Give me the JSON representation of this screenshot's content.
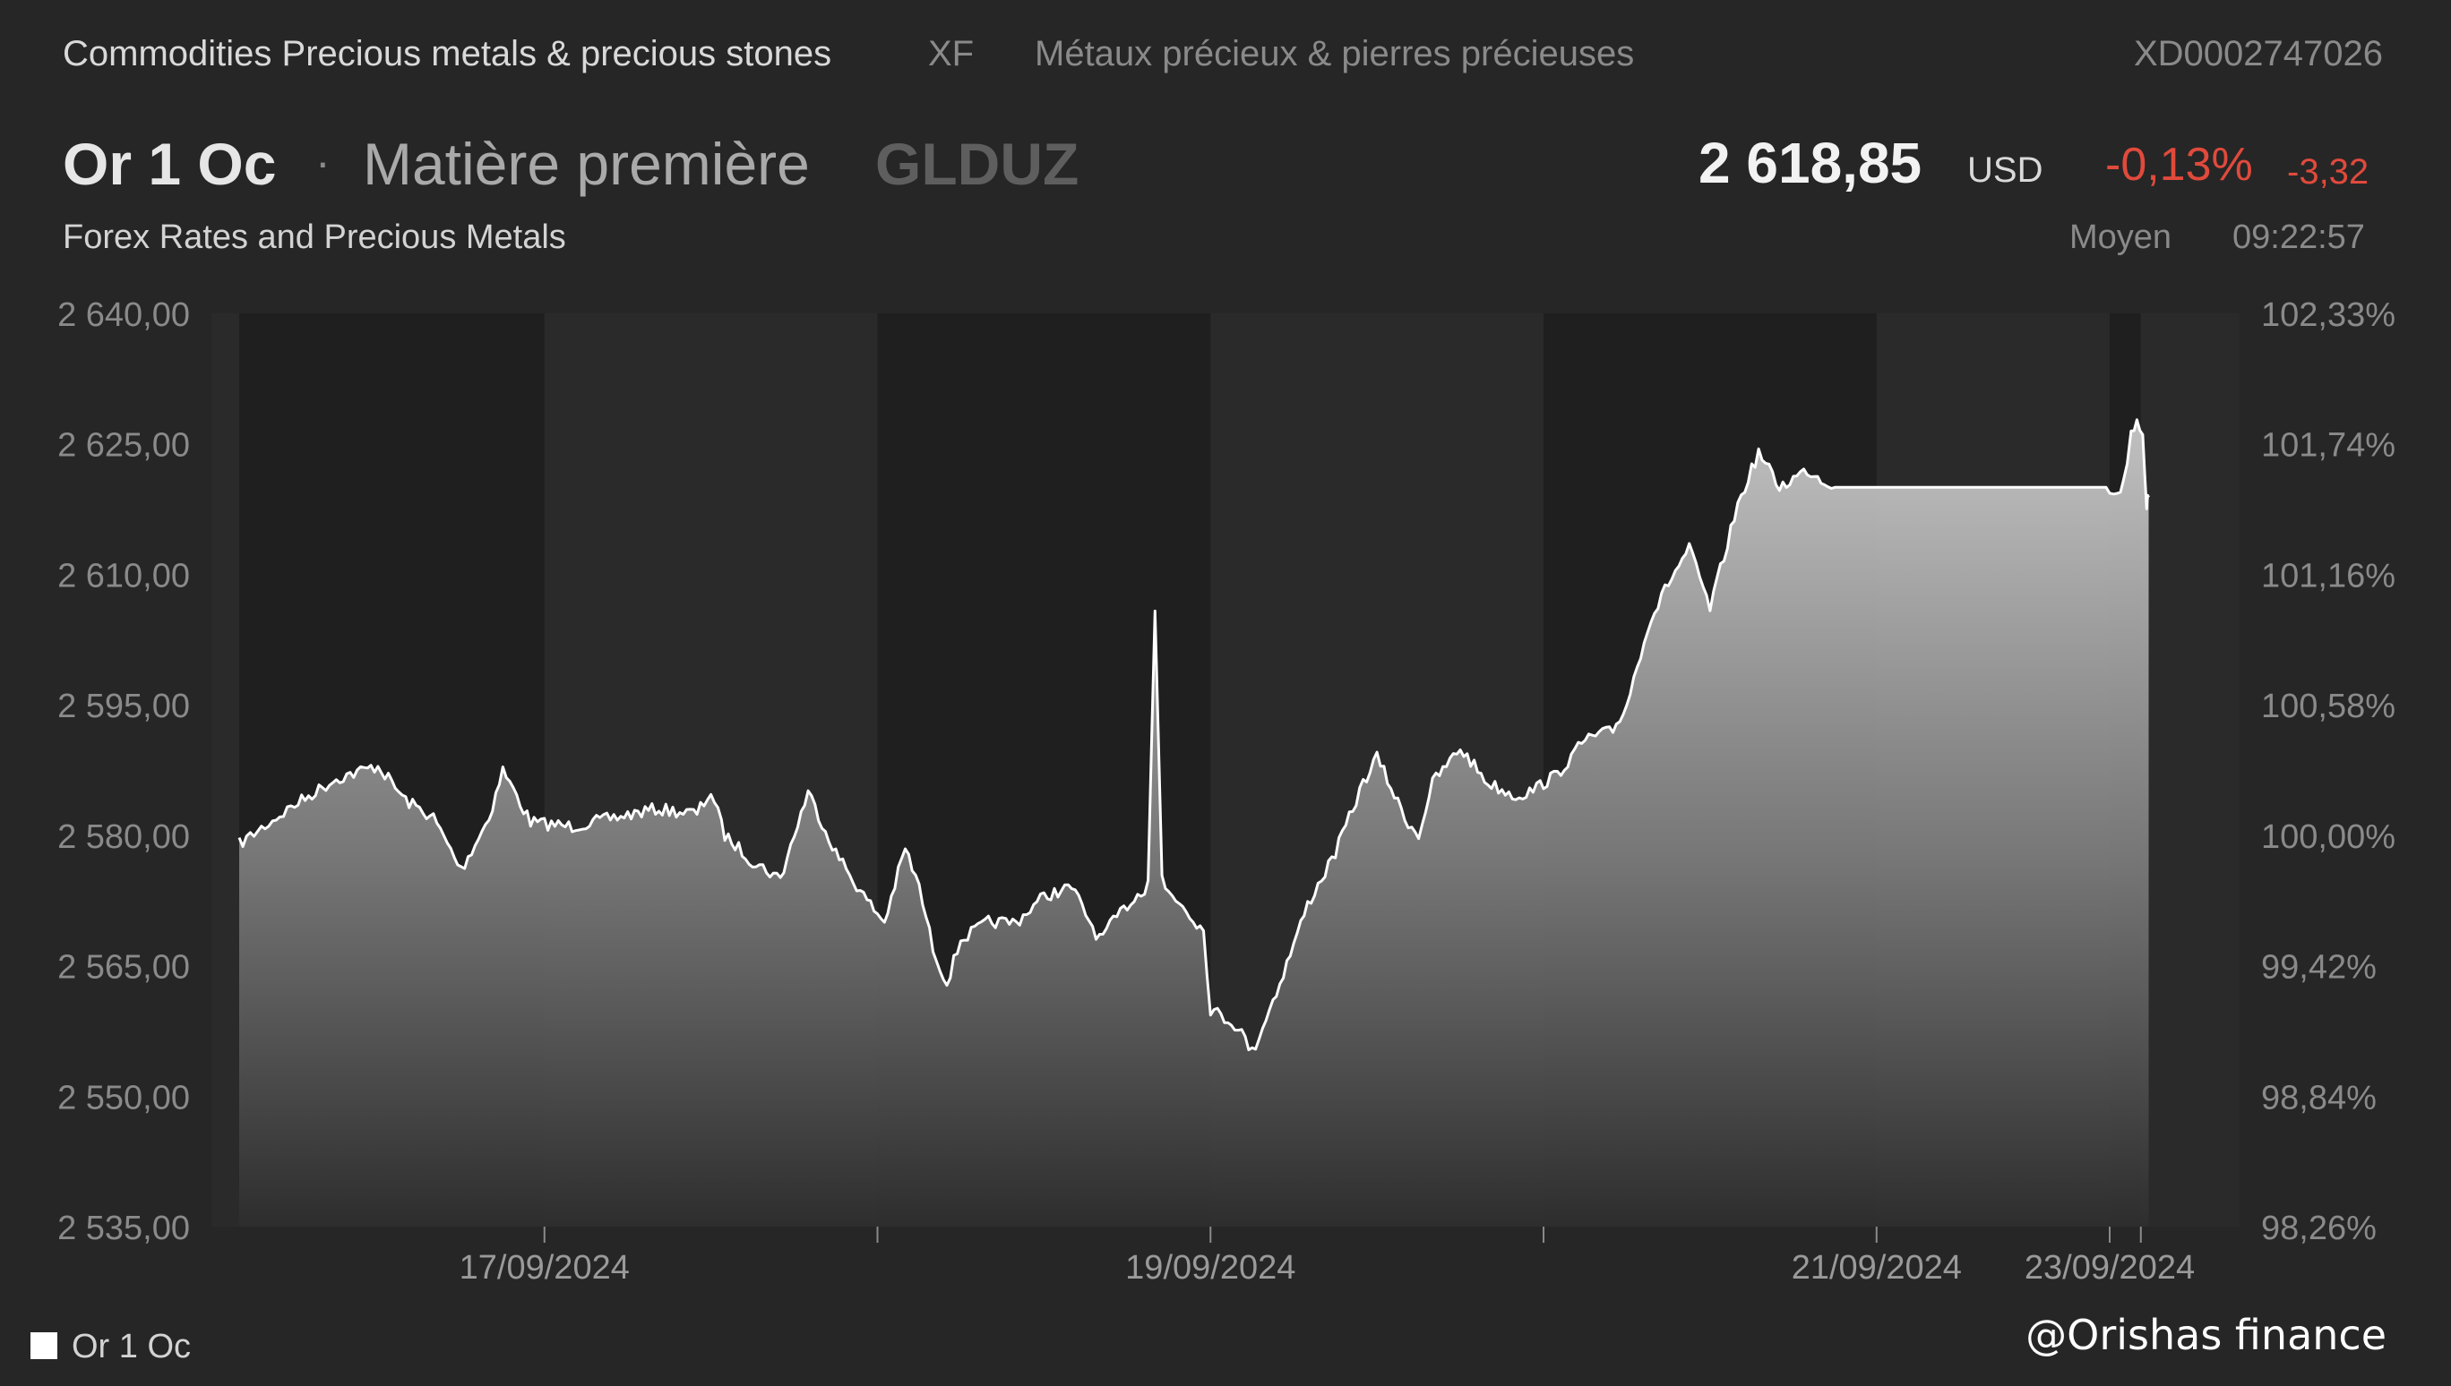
{
  "header": {
    "category": "Commodities Precious metals & precious stones",
    "exchange_code": "XF",
    "category_fr": "Métaux précieux & pierres précieuses",
    "isin": "XD0002747026",
    "name": "Or 1 Oc",
    "separator": "·",
    "type": "Matière première",
    "ticker": "GLDUZ",
    "subtitle": "Forex Rates and Precious Metals",
    "price": "2 618,85",
    "currency": "USD",
    "change_pct": "-0,13%",
    "change_abs": "-3,32",
    "price_type": "Moyen",
    "time": "09:22:57"
  },
  "legend": {
    "label": "Or 1 Oc"
  },
  "watermark": "@Orishas finance",
  "colors": {
    "background": "#262626",
    "line": "#ffffff",
    "negative": "#e04a3c"
  },
  "chart_data": {
    "type": "area",
    "title": "",
    "xlabel": "",
    "ylabel": "",
    "ylim": [
      2535,
      2640
    ],
    "y2lim": [
      98.26,
      102.33
    ],
    "y_ticks": [
      "2 640,00",
      "2 625,00",
      "2 610,00",
      "2 595,00",
      "2 580,00",
      "2 565,00",
      "2 550,00",
      "2 535,00"
    ],
    "y2_ticks": [
      "102,33%",
      "101,74%",
      "101,16%",
      "100,58%",
      "100,00%",
      "99,42%",
      "98,84%",
      "98,26%"
    ],
    "x_range": [
      "2024-09-16T00:00",
      "2024-09-24T09:22"
    ],
    "x_ticks": [
      {
        "label": "17/09/2024",
        "x": "2024-09-17"
      },
      {
        "label": "19/09/2024",
        "x": "2024-09-19"
      },
      {
        "label": "21/09/2024",
        "x": "2024-09-21"
      },
      {
        "label": "23/09/2024",
        "x": "2024-09-23"
      }
    ],
    "session_bands": [
      [
        "2024-09-16T02:00",
        "2024-09-17T00:00"
      ],
      [
        "2024-09-18T00:00",
        "2024-09-19T00:00"
      ],
      [
        "2024-09-20T00:00",
        "2024-09-21T00:00"
      ],
      [
        "2024-09-23T00:00",
        "2024-09-23T08:00"
      ]
    ],
    "series": [
      {
        "name": "Or 1 Oc",
        "points": [
          [
            "2024-09-16T02:00",
            2579.0
          ],
          [
            "2024-09-16T06:00",
            2583.5
          ],
          [
            "2024-09-16T09:00",
            2586.5
          ],
          [
            "2024-09-16T12:00",
            2588.0
          ],
          [
            "2024-09-16T14:00",
            2584.0
          ],
          [
            "2024-09-16T16:00",
            2582.0
          ],
          [
            "2024-09-16T18:00",
            2576.0
          ],
          [
            "2024-09-16T20:00",
            2582.0
          ],
          [
            "2024-09-16T21:00",
            2587.5
          ],
          [
            "2024-09-16T23:00",
            2581.5
          ],
          [
            "2024-09-17T02:00",
            2581.0
          ],
          [
            "2024-09-17T05:00",
            2582.0
          ],
          [
            "2024-09-17T08:00",
            2583.0
          ],
          [
            "2024-09-17T11:00",
            2582.5
          ],
          [
            "2024-09-17T12:00",
            2585.0
          ],
          [
            "2024-09-17T13:00",
            2580.0
          ],
          [
            "2024-09-17T15:00",
            2577.0
          ],
          [
            "2024-09-17T17:00",
            2575.0
          ],
          [
            "2024-09-17T19:00",
            2585.0
          ],
          [
            "2024-09-17T21:00",
            2578.0
          ],
          [
            "2024-09-17T23:00",
            2573.0
          ],
          [
            "2024-09-18T00:30",
            2570.0
          ],
          [
            "2024-09-18T02:00",
            2578.5
          ],
          [
            "2024-09-18T03:00",
            2574.0
          ],
          [
            "2024-09-18T04:00",
            2567.0
          ],
          [
            "2024-09-18T05:00",
            2563.0
          ],
          [
            "2024-09-18T06:00",
            2568.0
          ],
          [
            "2024-09-18T08:00",
            2570.0
          ],
          [
            "2024-09-18T10:00",
            2570.0
          ],
          [
            "2024-09-18T12:00",
            2573.0
          ],
          [
            "2024-09-18T14:00",
            2574.0
          ],
          [
            "2024-09-18T16:00",
            2568.0
          ],
          [
            "2024-09-18T18:00",
            2572.0
          ],
          [
            "2024-09-18T20:00",
            2575.0
          ],
          [
            "2024-09-18T22:00",
            2572.0
          ],
          [
            "2024-09-18T23:30",
            2569.0
          ],
          [
            "2024-09-19T00:00",
            2560.0
          ],
          [
            "2024-09-19T02:00",
            2558.0
          ],
          [
            "2024-09-19T03:00",
            2555.0
          ],
          [
            "2024-09-19T05:00",
            2563.0
          ],
          [
            "2024-09-19T07:00",
            2572.0
          ],
          [
            "2024-09-19T09:00",
            2578.0
          ],
          [
            "2024-09-19T11:00",
            2586.0
          ],
          [
            "2024-09-19T12:00",
            2589.0
          ],
          [
            "2024-09-19T14:00",
            2582.0
          ],
          [
            "2024-09-19T15:00",
            2580.0
          ],
          [
            "2024-09-19T16:00",
            2586.0
          ],
          [
            "2024-09-19T18:00",
            2590.0
          ],
          [
            "2024-09-19T20:00",
            2586.0
          ],
          [
            "2024-09-19T22:00",
            2584.5
          ],
          [
            "2024-09-19T23:00",
            2585.0
          ],
          [
            "2024-09-20T01:00",
            2587.0
          ],
          [
            "2024-09-20T03:00",
            2591.0
          ],
          [
            "2024-09-20T05:00",
            2592.0
          ],
          [
            "2024-09-20T06:00",
            2595.0
          ],
          [
            "2024-09-20T07:30",
            2604.0
          ],
          [
            "2024-09-20T09:00",
            2609.0
          ],
          [
            "2024-09-20T10:30",
            2613.0
          ],
          [
            "2024-09-20T12:00",
            2606.0
          ],
          [
            "2024-09-20T14:00",
            2618.0
          ],
          [
            "2024-09-20T15:30",
            2624.0
          ],
          [
            "2024-09-20T17:00",
            2620.0
          ],
          [
            "2024-09-20T19:00",
            2622.0
          ],
          [
            "2024-09-20T21:00",
            2620.0
          ],
          [
            "2024-09-23T00:00",
            2620.0
          ],
          [
            "2024-09-23T02:00",
            2619.0
          ],
          [
            "2024-09-23T03:30",
            2620.5
          ],
          [
            "2024-09-23T05:30",
            2626.0
          ],
          [
            "2024-09-23T07:00",
            2628.0
          ],
          [
            "2024-09-23T08:30",
            2626.0
          ],
          [
            "2024-09-23T09:30",
            2618.0
          ],
          [
            "2024-09-23T10:00",
            2618.85
          ]
        ]
      }
    ]
  }
}
